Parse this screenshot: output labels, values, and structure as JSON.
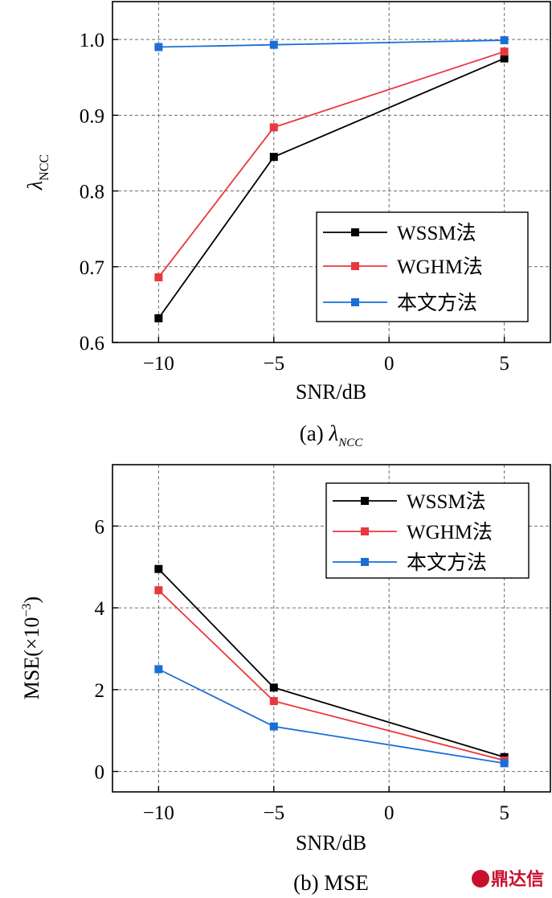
{
  "chart_data": [
    {
      "type": "line",
      "id": "a",
      "x": [
        -10,
        -5,
        5
      ],
      "xlim": [
        -12,
        7
      ],
      "ylim": [
        0.6,
        1.05
      ],
      "xticks": [
        -10,
        -5,
        0,
        5
      ],
      "xtick_labels": [
        "−10",
        "−5",
        "0",
        "5"
      ],
      "yticks": [
        0.6,
        0.7,
        0.8,
        0.9,
        1.0
      ],
      "ytick_labels": [
        "0.6",
        "0.7",
        "0.8",
        "0.9",
        "1.0"
      ],
      "xlabel": "SNR/dB",
      "ylabel": "λ",
      "ylabel_sub": "NCC",
      "caption_prefix": "(a) ",
      "caption_symbol": "λ",
      "caption_sub": "NCC",
      "legend_position": "lower-right",
      "grid": true,
      "series": [
        {
          "name": "WSSM法",
          "color": "#000000",
          "values": [
            0.632,
            0.845,
            0.975
          ]
        },
        {
          "name": "WGHM法",
          "color": "#e8383d",
          "values": [
            0.686,
            0.884,
            0.984
          ]
        },
        {
          "name": "本文方法",
          "color": "#1a6fd6",
          "values": [
            0.99,
            0.993,
            0.999
          ]
        }
      ]
    },
    {
      "type": "line",
      "id": "b",
      "x": [
        -10,
        -5,
        5
      ],
      "xlim": [
        -12,
        7
      ],
      "ylim": [
        -0.5,
        7.5
      ],
      "xticks": [
        -10,
        -5,
        0,
        5
      ],
      "xtick_labels": [
        "−10",
        "−5",
        "0",
        "5"
      ],
      "yticks": [
        0,
        2,
        4,
        6
      ],
      "ytick_labels": [
        "0",
        "2",
        "4",
        "6"
      ],
      "xlabel": "SNR/dB",
      "ylabel_main": "MSE(×10",
      "ylabel_sup": "−3",
      "ylabel_end": ")",
      "caption": "(b) MSE",
      "legend_position": "upper-right",
      "grid": true,
      "series": [
        {
          "name": "WSSM法",
          "color": "#000000",
          "values": [
            4.95,
            2.05,
            0.35
          ]
        },
        {
          "name": "WGHM法",
          "color": "#e8383d",
          "values": [
            4.43,
            1.72,
            0.27
          ]
        },
        {
          "name": "本文方法",
          "color": "#1a6fd6",
          "values": [
            2.5,
            1.1,
            0.2
          ]
        }
      ]
    }
  ],
  "watermark": {
    "text": "鼎达信",
    "color": "#c8102e"
  }
}
